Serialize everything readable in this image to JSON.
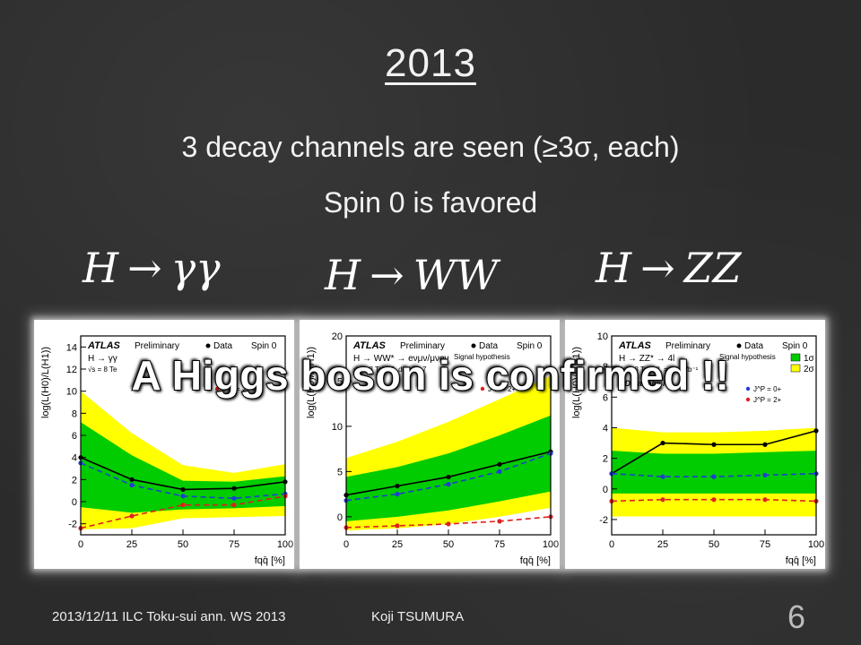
{
  "slide": {
    "title": "2013",
    "line1": "3 decay channels are seen (≥3σ, each)",
    "line2": "Spin 0 is favored",
    "banner": "A Higgs boson is confirmed !!",
    "channels": [
      {
        "lhs": "H",
        "arrow": "→",
        "rhs": "γγ"
      },
      {
        "lhs": "H",
        "arrow": "→",
        "rhs": "WW"
      },
      {
        "lhs": "H",
        "arrow": "→",
        "rhs": "ZZ"
      }
    ]
  },
  "plots": [
    {
      "ylabel": "log(L(H0)/L(H1))",
      "xlabel": "fqq̄ [%]",
      "experiment": "ATLAS",
      "status": "Preliminary",
      "process": "H → γγ",
      "energy": "√s = 8 Te",
      "spin": "Spin 0",
      "legend_data": "Data",
      "legend_alt": "J^P = 2+",
      "yticks": [
        "-2",
        "0",
        "2",
        "4",
        "6",
        "8",
        "10",
        "12",
        "14"
      ],
      "xticks": [
        "0",
        "25",
        "50",
        "75",
        "100"
      ]
    },
    {
      "ylabel": "log(L(H0)/L(H1))",
      "xlabel": "fqq̄ [%]",
      "experiment": "ATLAS",
      "status": "Preliminary",
      "process": "H → WW* → eνμν/μνeν",
      "energy": "√s = 8 TeV, ∫L dt = 20.7",
      "spin": "Spin 0",
      "legend_data": "Data",
      "legend_hyp": "Signal hypothesis",
      "legend_alt": "J^P = 2+",
      "yticks": [
        "0",
        "5",
        "10",
        "15",
        "20"
      ],
      "xticks": [
        "0",
        "25",
        "50",
        "75",
        "100"
      ]
    },
    {
      "ylabel": "log(L(H0)/L(H1))",
      "xlabel": "fqq̄ [%]",
      "experiment": "ATLAS",
      "status": "Preliminary",
      "process": "H → ZZ* → 4l",
      "energy": "√s = 8 TeV, ∫L = 20.7 fb⁻¹",
      "spin": "Spin 0",
      "legend_data": "Data",
      "legend_hyp": "Signal hypothesis",
      "legend_null": "J^P = 0+",
      "legend_alt": "J^P = 2+",
      "band1": "1σ",
      "band2": "2σ",
      "analysis": "BDT analysis",
      "yticks": [
        "-2",
        "0",
        "2",
        "4",
        "6",
        "8",
        "10"
      ],
      "xticks": [
        "0",
        "25",
        "50",
        "75",
        "100"
      ]
    }
  ],
  "chart_data": [
    {
      "type": "line",
      "title": "H → γγ",
      "xlabel": "fqq̄ [%]",
      "ylabel": "log(L(H0)/L(H1))",
      "x": [
        0,
        25,
        50,
        75,
        100
      ],
      "xlim": [
        0,
        100
      ],
      "ylim": [
        -3,
        15
      ],
      "series": [
        {
          "name": "Data",
          "values": [
            4.0,
            2.0,
            1.1,
            1.2,
            1.8
          ]
        },
        {
          "name": "Spin 0",
          "values": [
            3.5,
            1.5,
            0.5,
            0.3,
            0.7
          ]
        },
        {
          "name": "J^P = 2+",
          "values": [
            -2.4,
            -1.3,
            -0.3,
            -0.3,
            0.5
          ]
        }
      ],
      "bands": {
        "inner": {
          "lo": [
            -0.5,
            -1.0,
            -0.7,
            -0.6,
            -0.4
          ],
          "hi": [
            7.2,
            4.2,
            1.9,
            1.8,
            2.3
          ]
        },
        "outer": {
          "lo": [
            -2.5,
            -2.4,
            -1.5,
            -1.4,
            -1.3
          ],
          "hi": [
            10.0,
            6.2,
            3.3,
            2.6,
            3.4
          ]
        }
      }
    },
    {
      "type": "line",
      "title": "H → WW",
      "xlabel": "fqq̄ [%]",
      "ylabel": "log(L(H0)/L(H1))",
      "x": [
        0,
        25,
        50,
        75,
        100
      ],
      "xlim": [
        0,
        100
      ],
      "ylim": [
        -2,
        20
      ],
      "series": [
        {
          "name": "Data",
          "values": [
            2.4,
            3.4,
            4.4,
            5.8,
            7.2
          ]
        },
        {
          "name": "Spin 0",
          "values": [
            1.8,
            2.5,
            3.6,
            5.0,
            7.0
          ]
        },
        {
          "name": "J^P = 2+",
          "values": [
            -1.2,
            -1.0,
            -0.8,
            -0.5,
            0.0
          ]
        }
      ],
      "bands": {
        "inner": {
          "lo": [
            -0.5,
            0.0,
            0.7,
            1.7,
            2.8
          ],
          "hi": [
            4.4,
            5.5,
            7.0,
            9.0,
            11.2
          ]
        },
        "outer": {
          "lo": [
            -1.5,
            -1.3,
            -0.8,
            0.0,
            1.0
          ],
          "hi": [
            6.5,
            8.3,
            10.5,
            13.0,
            15.6
          ]
        }
      }
    },
    {
      "type": "line",
      "title": "H → ZZ",
      "xlabel": "fqq̄ [%]",
      "ylabel": "log(L(H0)/L(H1))",
      "x": [
        0,
        25,
        50,
        75,
        100
      ],
      "xlim": [
        0,
        100
      ],
      "ylim": [
        -3,
        10
      ],
      "series": [
        {
          "name": "Data",
          "values": [
            1.0,
            3.0,
            2.9,
            2.9,
            3.8
          ]
        },
        {
          "name": "J^P = 0+",
          "values": [
            1.0,
            0.8,
            0.8,
            0.9,
            1.0
          ]
        },
        {
          "name": "J^P = 2+",
          "values": [
            -0.8,
            -0.7,
            -0.7,
            -0.7,
            -0.8
          ]
        }
      ],
      "bands": {
        "inner": {
          "lo": [
            -0.3,
            -0.3,
            -0.3,
            -0.3,
            -0.3
          ],
          "hi": [
            2.5,
            2.3,
            2.3,
            2.4,
            2.5
          ]
        },
        "outer": {
          "lo": [
            -1.8,
            -1.8,
            -1.8,
            -1.8,
            -1.8
          ],
          "hi": [
            4.0,
            3.7,
            3.7,
            3.8,
            4.0
          ]
        }
      }
    }
  ],
  "footer": {
    "left": "2013/12/11 ILC Toku-sui ann. WS 2013",
    "center": "Koji TSUMURA",
    "page": "6"
  },
  "colors": {
    "background": "#2b2b2b",
    "text": "#f2f2f2",
    "band_outer": "#ffff00",
    "band_inner": "#00cc00",
    "data_line": "#000000",
    "spin0_line": "#1f3fd0",
    "spin2_line": "#e0201e"
  }
}
